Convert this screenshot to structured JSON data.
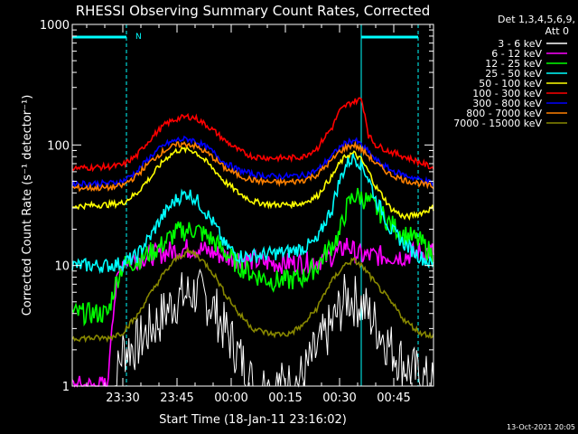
{
  "chart_data": {
    "type": "line",
    "title": "RHESSI Observing Summary Count Rates, Corrected",
    "xlabel": "Start Time (18-Jan-11 23:16:02)",
    "ylabel": "Corrected Count Rate (s⁻¹ detector⁻¹)",
    "y_scale": "log",
    "ylim": [
      1,
      1000
    ],
    "xlim_minutes": [
      0,
      100
    ],
    "x_ticks": [
      {
        "label": "23:30",
        "t": 14
      },
      {
        "label": "23:45",
        "t": 29
      },
      {
        "label": "00:00",
        "t": 44
      },
      {
        "label": "00:15",
        "t": 59
      },
      {
        "label": "00:30",
        "t": 74
      },
      {
        "label": "00:45",
        "t": 89
      }
    ],
    "y_ticks": [
      {
        "label": "1",
        "value": 1
      },
      {
        "label": "10",
        "value": 10
      },
      {
        "label": "100",
        "value": 100
      },
      {
        "label": "1000",
        "value": 1000
      }
    ],
    "legend_header": "Det 1,3,4,5,6,9,",
    "legend_sub": "Att 0",
    "legend_position": "right",
    "footer_date": "13-Oct-2021 20:05",
    "night_marker": "N",
    "series": [
      {
        "name": "3 - 6 keV",
        "color": "#ffffff",
        "t": [
          0,
          10,
          14,
          18,
          24,
          29,
          34,
          38,
          42,
          46,
          50,
          55,
          60,
          64,
          68,
          72,
          76,
          80,
          84,
          88,
          92,
          96,
          100
        ],
        "values": [
          0,
          0,
          2,
          2.2,
          3.5,
          5.3,
          6,
          5,
          3,
          1.8,
          1,
          1,
          1,
          1.2,
          2,
          3.2,
          5.5,
          4.8,
          3.2,
          2.1,
          1.5,
          1.2,
          1
        ]
      },
      {
        "name": "6 - 12 keV",
        "color": "#ff00ff",
        "t": [
          0,
          10,
          14,
          18,
          24,
          29,
          34,
          38,
          42,
          46,
          50,
          55,
          60,
          64,
          68,
          72,
          74,
          76,
          78,
          80,
          84,
          88,
          92,
          96,
          100
        ],
        "values": [
          1,
          1,
          11,
          11.5,
          12.5,
          13.5,
          14,
          13,
          12,
          11.5,
          11,
          10.5,
          10.5,
          10.5,
          11,
          12,
          13,
          15,
          13,
          12,
          12,
          12,
          12,
          13,
          13
        ]
      },
      {
        "name": "12 - 25 keV",
        "color": "#00ff00",
        "t": [
          0,
          10,
          14,
          18,
          24,
          29,
          34,
          38,
          42,
          46,
          50,
          55,
          60,
          64,
          68,
          72,
          74,
          76,
          78,
          80,
          84,
          88,
          92,
          96,
          100
        ],
        "values": [
          4,
          4,
          10,
          11,
          14,
          19,
          20,
          17,
          13,
          10,
          8.5,
          7.5,
          7.5,
          8,
          10,
          15,
          18,
          30,
          38,
          37,
          30,
          22,
          18,
          16,
          12
        ]
      },
      {
        "name": "25 - 50 keV",
        "color": "#00ffff",
        "t": [
          0,
          10,
          14,
          18,
          22,
          26,
          29,
          32,
          34,
          38,
          42,
          46,
          50,
          55,
          60,
          64,
          68,
          72,
          74,
          76,
          78,
          80,
          84,
          88,
          92,
          96,
          100
        ],
        "values": [
          10,
          10,
          10.5,
          12,
          18,
          28,
          36,
          40,
          36,
          25,
          15,
          12,
          12,
          12.5,
          13,
          14,
          16,
          30,
          50,
          70,
          80,
          70,
          35,
          20,
          15,
          12,
          10
        ]
      },
      {
        "name": "50 - 100 keV",
        "color": "#ffff00",
        "t": [
          0,
          10,
          14,
          18,
          22,
          26,
          29,
          32,
          34,
          38,
          42,
          46,
          50,
          55,
          60,
          64,
          68,
          72,
          74,
          76,
          78,
          80,
          84,
          88,
          92,
          96,
          100
        ],
        "values": [
          31,
          32,
          33,
          40,
          55,
          78,
          90,
          92,
          88,
          68,
          50,
          40,
          34,
          32,
          32,
          33,
          38,
          55,
          70,
          82,
          85,
          75,
          45,
          30,
          25,
          27,
          30
        ]
      },
      {
        "name": "100 - 300 keV",
        "color": "#ff0000",
        "t": [
          0,
          10,
          14,
          18,
          22,
          26,
          29,
          32,
          34,
          38,
          42,
          46,
          50,
          55,
          60,
          64,
          68,
          72,
          74,
          76,
          78,
          80,
          82,
          84,
          88,
          92,
          96,
          100
        ],
        "values": [
          64,
          66,
          68,
          82,
          115,
          150,
          165,
          172,
          168,
          140,
          110,
          90,
          80,
          78,
          78,
          80,
          95,
          140,
          190,
          215,
          230,
          240,
          120,
          100,
          88,
          80,
          72,
          64
        ]
      },
      {
        "name": "300 - 800 keV",
        "color": "#0000ff",
        "t": [
          0,
          10,
          14,
          18,
          22,
          26,
          29,
          32,
          34,
          38,
          42,
          46,
          50,
          55,
          60,
          64,
          68,
          72,
          74,
          76,
          78,
          80,
          84,
          88,
          92,
          96,
          100
        ],
        "values": [
          48,
          48,
          50,
          60,
          82,
          102,
          110,
          112,
          108,
          92,
          72,
          62,
          57,
          55,
          55,
          56,
          62,
          82,
          95,
          105,
          110,
          100,
          75,
          62,
          56,
          52,
          48
        ]
      },
      {
        "name": "800 - 7000 keV",
        "color": "#ff8000",
        "t": [
          0,
          10,
          14,
          18,
          22,
          26,
          29,
          32,
          34,
          38,
          42,
          46,
          50,
          55,
          60,
          64,
          68,
          72,
          74,
          76,
          78,
          80,
          84,
          88,
          92,
          96,
          100
        ],
        "values": [
          44,
          44,
          46,
          56,
          74,
          92,
          100,
          102,
          98,
          83,
          65,
          56,
          51,
          49,
          49,
          51,
          57,
          75,
          88,
          96,
          100,
          92,
          70,
          57,
          51,
          48,
          45
        ]
      },
      {
        "name": "7000 - 15000 keV",
        "color": "#888800",
        "t": [
          0,
          10,
          14,
          18,
          22,
          26,
          29,
          32,
          34,
          38,
          42,
          46,
          50,
          55,
          60,
          64,
          68,
          72,
          74,
          76,
          78,
          80,
          84,
          88,
          92,
          96,
          100
        ],
        "values": [
          2.5,
          2.5,
          2.8,
          3.8,
          6,
          9,
          11.5,
          13,
          12.5,
          9.5,
          6,
          4,
          3,
          2.7,
          2.7,
          3.2,
          4.5,
          7.5,
          9,
          10.5,
          11,
          10,
          7,
          5,
          3.5,
          2.8,
          2.6
        ]
      }
    ],
    "attenuator_bar": [
      {
        "t_start": 0,
        "t_end": 15
      },
      {
        "t_start": 80,
        "t_end": 100
      }
    ],
    "dashed_markers_t": [
      15,
      100
    ],
    "solid_markers_t": [
      0,
      80
    ]
  }
}
